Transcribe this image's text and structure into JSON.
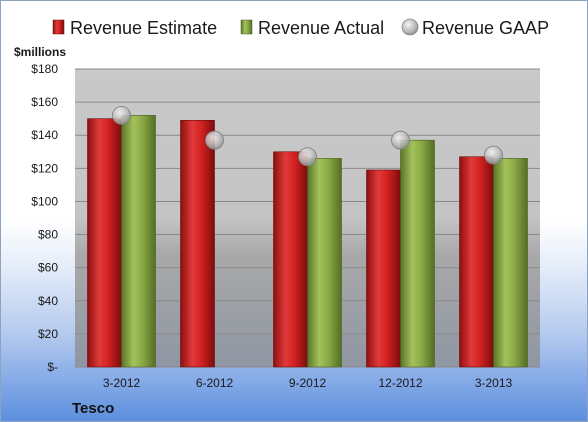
{
  "company": "Tesco",
  "chart_data": {
    "type": "bar",
    "categories": [
      "3-2012",
      "6-2012",
      "9-2012",
      "12-2012",
      "3-2013"
    ],
    "ylabel": "$millions",
    "ylim": [
      0,
      180
    ],
    "yticks": [
      0,
      20,
      40,
      60,
      80,
      100,
      120,
      140,
      160,
      180
    ],
    "ytick_labels": [
      "$-",
      "$20",
      "$40",
      "$60",
      "$80",
      "$100",
      "$120",
      "$140",
      "$160",
      "$180"
    ],
    "legend_position": "top",
    "grid": true,
    "series": [
      {
        "name": "Revenue Estimate",
        "kind": "bar",
        "color": "#c81e1e",
        "values": [
          150,
          149,
          130,
          119,
          127
        ]
      },
      {
        "name": "Revenue Actual",
        "kind": "bar",
        "color": "#7f9f3c",
        "values": [
          152,
          null,
          126,
          137,
          126
        ]
      },
      {
        "name": "Revenue GAAP",
        "kind": "marker",
        "color": "#b9b9b9",
        "values": [
          152,
          137,
          127,
          137,
          128
        ]
      }
    ]
  }
}
